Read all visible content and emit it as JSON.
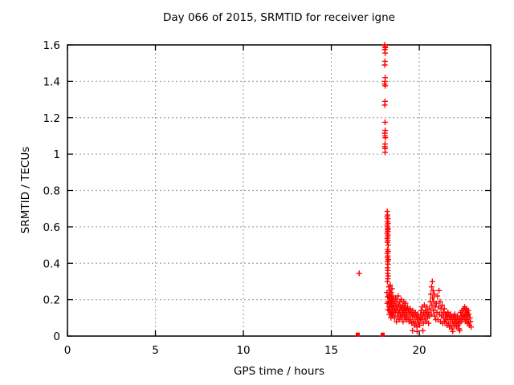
{
  "chart_data": {
    "type": "scatter",
    "title": "Day 066 of 2015, SRMTID for receiver igne",
    "xlabel": "GPS time / hours",
    "ylabel": "SRMTID / TECUs",
    "xlim": [
      0,
      24.06
    ],
    "ylim": [
      0,
      1.6
    ],
    "xticks": [
      0,
      5,
      10,
      15,
      20
    ],
    "yticks": [
      0,
      0.2,
      0.4,
      0.6,
      0.8,
      1,
      1.2,
      1.4,
      1.6
    ],
    "xticklabels": [
      "0",
      "5",
      "10",
      "15",
      "20"
    ],
    "yticklabels": [
      "0",
      "0.2",
      "0.4",
      "0.6",
      "0.8",
      "1",
      "1.2",
      "1.4",
      "1.6"
    ],
    "grid": true,
    "legend": "none",
    "styles": {
      "marker_color": "#ff0000",
      "grid_color": "#a8a8a8",
      "border_color": "#000000",
      "background": "#ffffff",
      "text_color": "#000000"
    },
    "series": [
      {
        "name": "SRMTID",
        "marker": "plus",
        "points": [
          [
            16.58,
            0.345
          ],
          [
            18.03,
            1.6
          ],
          [
            18.05,
            1.59
          ],
          [
            18.07,
            1.585
          ],
          [
            18.04,
            1.575
          ],
          [
            18.06,
            1.555
          ],
          [
            18.05,
            1.51
          ],
          [
            18.04,
            1.49
          ],
          [
            18.06,
            1.42
          ],
          [
            18.05,
            1.4
          ],
          [
            18.03,
            1.385
          ],
          [
            18.06,
            1.375
          ],
          [
            18.05,
            1.29
          ],
          [
            18.04,
            1.27
          ],
          [
            18.05,
            1.175
          ],
          [
            18.06,
            1.13
          ],
          [
            18.04,
            1.115
          ],
          [
            18.05,
            1.1
          ],
          [
            18.07,
            1.09
          ],
          [
            18.05,
            1.055
          ],
          [
            18.04,
            1.04
          ],
          [
            18.06,
            1.03
          ],
          [
            18.05,
            1.01
          ],
          [
            18.18,
            0.685
          ],
          [
            18.2,
            0.665
          ],
          [
            18.17,
            0.655
          ],
          [
            18.21,
            0.645
          ],
          [
            18.19,
            0.63
          ],
          [
            18.22,
            0.62
          ],
          [
            18.18,
            0.61
          ],
          [
            18.2,
            0.6
          ],
          [
            18.23,
            0.59
          ],
          [
            18.19,
            0.585
          ],
          [
            18.21,
            0.575
          ],
          [
            18.17,
            0.565
          ],
          [
            18.22,
            0.555
          ],
          [
            18.2,
            0.545
          ],
          [
            18.18,
            0.535
          ],
          [
            18.21,
            0.525
          ],
          [
            18.19,
            0.515
          ],
          [
            18.23,
            0.5
          ],
          [
            18.2,
            0.475
          ],
          [
            18.22,
            0.465
          ],
          [
            18.18,
            0.455
          ],
          [
            18.21,
            0.44
          ],
          [
            18.19,
            0.43
          ],
          [
            18.24,
            0.42
          ],
          [
            18.2,
            0.41
          ],
          [
            18.22,
            0.395
          ],
          [
            18.19,
            0.375
          ],
          [
            18.21,
            0.36
          ],
          [
            18.2,
            0.345
          ],
          [
            18.23,
            0.33
          ],
          [
            18.21,
            0.315
          ],
          [
            18.19,
            0.3
          ],
          [
            18.16,
            0.24
          ],
          [
            18.18,
            0.18
          ],
          [
            18.2,
            0.215
          ],
          [
            18.22,
            0.145
          ],
          [
            18.24,
            0.19
          ],
          [
            18.26,
            0.27
          ],
          [
            18.27,
            0.22
          ],
          [
            18.28,
            0.16
          ],
          [
            18.29,
            0.12
          ],
          [
            18.3,
            0.25
          ],
          [
            18.31,
            0.19
          ],
          [
            18.32,
            0.14
          ],
          [
            18.33,
            0.21
          ],
          [
            18.34,
            0.17
          ],
          [
            18.35,
            0.28
          ],
          [
            18.36,
            0.23
          ],
          [
            18.37,
            0.13
          ],
          [
            18.38,
            0.19
          ],
          [
            18.39,
            0.1
          ],
          [
            18.4,
            0.24
          ],
          [
            18.41,
            0.16
          ],
          [
            18.42,
            0.21
          ],
          [
            18.43,
            0.12
          ],
          [
            18.44,
            0.18
          ],
          [
            18.45,
            0.26
          ],
          [
            18.46,
            0.14
          ],
          [
            18.47,
            0.2
          ],
          [
            18.48,
            0.16
          ],
          [
            18.49,
            0.11
          ],
          [
            18.5,
            0.22
          ],
          [
            18.52,
            0.17
          ],
          [
            18.54,
            0.13
          ],
          [
            18.56,
            0.2
          ],
          [
            18.58,
            0.15
          ],
          [
            18.6,
            0.1
          ],
          [
            18.62,
            0.18
          ],
          [
            18.64,
            0.13
          ],
          [
            18.66,
            0.21
          ],
          [
            18.68,
            0.16
          ],
          [
            18.7,
            0.08
          ],
          [
            18.72,
            0.14
          ],
          [
            18.74,
            0.19
          ],
          [
            18.76,
            0.11
          ],
          [
            18.78,
            0.16
          ],
          [
            18.8,
            0.22
          ],
          [
            18.82,
            0.13
          ],
          [
            18.84,
            0.17
          ],
          [
            18.86,
            0.09
          ],
          [
            18.88,
            0.14
          ],
          [
            18.9,
            0.19
          ],
          [
            18.92,
            0.12
          ],
          [
            18.94,
            0.16
          ],
          [
            18.96,
            0.1
          ],
          [
            18.98,
            0.2
          ],
          [
            19.0,
            0.15
          ],
          [
            19.02,
            0.11
          ],
          [
            19.04,
            0.17
          ],
          [
            19.06,
            0.13
          ],
          [
            19.08,
            0.08
          ],
          [
            19.1,
            0.15
          ],
          [
            19.12,
            0.19
          ],
          [
            19.14,
            0.12
          ],
          [
            19.16,
            0.16
          ],
          [
            19.18,
            0.1
          ],
          [
            19.2,
            0.14
          ],
          [
            19.22,
            0.18
          ],
          [
            19.24,
            0.11
          ],
          [
            19.26,
            0.15
          ],
          [
            19.28,
            0.09
          ],
          [
            19.3,
            0.13
          ],
          [
            19.33,
            0.16
          ],
          [
            19.36,
            0.1
          ],
          [
            19.39,
            0.14
          ],
          [
            19.42,
            0.08
          ],
          [
            19.45,
            0.12
          ],
          [
            19.48,
            0.15
          ],
          [
            19.51,
            0.09
          ],
          [
            19.54,
            0.13
          ],
          [
            19.57,
            0.07
          ],
          [
            19.6,
            0.11
          ],
          [
            19.62,
            0.03
          ],
          [
            19.63,
            0.14
          ],
          [
            19.66,
            0.08
          ],
          [
            19.69,
            0.12
          ],
          [
            19.72,
            0.06
          ],
          [
            19.75,
            0.1
          ],
          [
            19.78,
            0.13
          ],
          [
            19.81,
            0.07
          ],
          [
            19.84,
            0.11
          ],
          [
            19.87,
            0.05
          ],
          [
            19.88,
            0.025
          ],
          [
            19.9,
            0.09
          ],
          [
            19.93,
            0.12
          ],
          [
            19.96,
            0.07
          ],
          [
            19.99,
            0.1
          ],
          [
            20.02,
            0.06
          ],
          [
            20.05,
            0.09
          ],
          [
            20.08,
            0.12
          ],
          [
            20.11,
            0.14
          ],
          [
            20.14,
            0.09
          ],
          [
            20.17,
            0.16
          ],
          [
            20.2,
            0.11
          ],
          [
            20.2,
            0.03
          ],
          [
            20.23,
            0.07
          ],
          [
            20.26,
            0.13
          ],
          [
            20.29,
            0.17
          ],
          [
            20.32,
            0.1
          ],
          [
            20.35,
            0.14
          ],
          [
            20.38,
            0.08
          ],
          [
            20.41,
            0.12
          ],
          [
            20.44,
            0.16
          ],
          [
            20.47,
            0.1
          ],
          [
            20.5,
            0.13
          ],
          [
            20.53,
            0.07
          ],
          [
            20.56,
            0.11
          ],
          [
            20.6,
            0.15
          ],
          [
            20.63,
            0.19
          ],
          [
            20.66,
            0.23
          ],
          [
            20.68,
            0.12
          ],
          [
            20.7,
            0.27
          ],
          [
            20.72,
            0.17
          ],
          [
            20.74,
            0.3
          ],
          [
            20.76,
            0.21
          ],
          [
            20.78,
            0.25
          ],
          [
            20.8,
            0.14
          ],
          [
            20.82,
            0.19
          ],
          [
            20.85,
            0.23
          ],
          [
            20.88,
            0.11
          ],
          [
            20.91,
            0.16
          ],
          [
            20.94,
            0.09
          ],
          [
            20.97,
            0.18
          ],
          [
            21.0,
            0.13
          ],
          [
            21.03,
            0.22
          ],
          [
            21.06,
            0.09
          ],
          [
            21.09,
            0.16
          ],
          [
            21.12,
            0.25
          ],
          [
            21.15,
            0.12
          ],
          [
            21.18,
            0.19
          ],
          [
            21.21,
            0.08
          ],
          [
            21.24,
            0.15
          ],
          [
            21.27,
            0.11
          ],
          [
            21.3,
            0.17
          ],
          [
            21.33,
            0.07
          ],
          [
            21.36,
            0.13
          ],
          [
            21.39,
            0.1
          ],
          [
            21.42,
            0.15
          ],
          [
            21.45,
            0.08
          ],
          [
            21.48,
            0.12
          ],
          [
            21.51,
            0.09
          ],
          [
            21.54,
            0.12
          ],
          [
            21.57,
            0.06
          ],
          [
            21.6,
            0.1
          ],
          [
            21.63,
            0.13
          ],
          [
            21.66,
            0.07
          ],
          [
            21.69,
            0.11
          ],
          [
            21.72,
            0.05
          ],
          [
            21.75,
            0.09
          ],
          [
            21.78,
            0.12
          ],
          [
            21.81,
            0.06
          ],
          [
            21.84,
            0.1
          ],
          [
            21.87,
            0.04
          ],
          [
            21.9,
            0.08
          ],
          [
            21.9,
            0.025
          ],
          [
            21.93,
            0.11
          ],
          [
            21.96,
            0.06
          ],
          [
            21.99,
            0.09
          ],
          [
            22.02,
            0.12
          ],
          [
            22.05,
            0.07
          ],
          [
            22.08,
            0.1
          ],
          [
            22.11,
            0.05
          ],
          [
            22.14,
            0.08
          ],
          [
            22.17,
            0.11
          ],
          [
            22.2,
            0.06
          ],
          [
            22.23,
            0.09
          ],
          [
            22.26,
            0.04
          ],
          [
            22.29,
            0.07
          ],
          [
            22.3,
            0.03
          ],
          [
            22.32,
            0.1
          ],
          [
            22.35,
            0.13
          ],
          [
            22.38,
            0.08
          ],
          [
            22.41,
            0.11
          ],
          [
            22.44,
            0.14
          ],
          [
            22.47,
            0.09
          ],
          [
            22.5,
            0.12
          ],
          [
            22.53,
            0.15
          ],
          [
            22.56,
            0.1
          ],
          [
            22.58,
            0.16
          ],
          [
            22.6,
            0.12
          ],
          [
            22.62,
            0.08
          ],
          [
            22.64,
            0.14
          ],
          [
            22.66,
            0.11
          ],
          [
            22.68,
            0.15
          ],
          [
            22.7,
            0.09
          ],
          [
            22.72,
            0.13
          ],
          [
            22.74,
            0.07
          ],
          [
            22.76,
            0.11
          ],
          [
            22.78,
            0.14
          ],
          [
            22.8,
            0.08
          ],
          [
            22.82,
            0.12
          ],
          [
            22.85,
            0.06
          ],
          [
            22.88,
            0.1
          ],
          [
            22.91,
            0.08
          ],
          [
            22.94,
            0.05
          ]
        ]
      },
      {
        "name": "zero-flags",
        "marker": "square",
        "points": [
          [
            16.5,
            0.008
          ],
          [
            17.92,
            0.008
          ]
        ]
      }
    ]
  }
}
